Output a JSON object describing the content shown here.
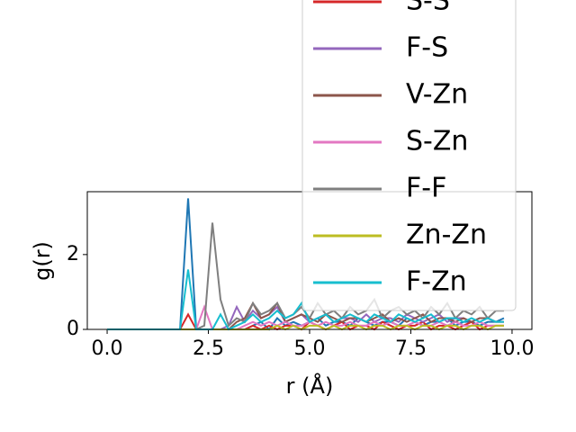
{
  "chart_data": {
    "type": "line",
    "xlabel": "r (Å)",
    "ylabel": "g(r)",
    "x": [
      0,
      0.2,
      0.4,
      0.6,
      0.8,
      1.0,
      1.2,
      1.4,
      1.6,
      1.8,
      2.0,
      2.2,
      2.4,
      2.6,
      2.8,
      3.0,
      3.2,
      3.4,
      3.6,
      3.8,
      4.0,
      4.2,
      4.4,
      4.6,
      4.8,
      5.0,
      5.2,
      5.4,
      5.6,
      5.8,
      6.0,
      6.2,
      6.4,
      6.6,
      6.8,
      7.0,
      7.2,
      7.4,
      7.6,
      7.8,
      8.0,
      8.2,
      8.4,
      8.6,
      8.8,
      9.0,
      9.2,
      9.4,
      9.6,
      9.8
    ],
    "series": [
      {
        "color": "#1f77b4",
        "values": [
          0,
          0,
          0,
          0,
          0,
          0,
          0,
          0,
          0,
          0,
          3.5,
          0,
          0,
          0,
          0,
          0,
          0,
          0,
          0.1,
          0.2,
          0,
          0.3,
          0.1,
          0.2,
          0.1,
          0.2,
          0.3,
          0.1,
          0.2,
          0.2,
          0.1,
          0.3,
          0.2,
          0.1,
          0.2,
          0.2,
          0.1,
          0.3,
          0.2,
          0.1,
          0.2,
          0.2,
          0.3,
          0.1,
          0.2,
          0.2,
          0.1,
          0.2,
          0.2,
          0.3
        ]
      },
      {
        "name": "S-S",
        "color": "#d62728",
        "values": [
          0,
          0,
          0,
          0,
          0,
          0,
          0,
          0,
          0,
          0,
          0.4,
          0,
          0,
          0,
          0,
          0,
          0,
          0,
          0.1,
          0,
          0.1,
          0,
          0.1,
          0.1,
          0,
          0.2,
          0.1,
          0,
          0.1,
          0.2,
          0,
          0.1,
          0.1,
          0,
          0.2,
          0.1,
          0,
          0.1,
          0.1,
          0.2,
          0,
          0.1,
          0.1,
          0,
          0.1,
          0.2,
          0,
          0.1,
          0.1,
          0.1
        ]
      },
      {
        "name": "F-S",
        "color": "#9467bd",
        "values": [
          0,
          0,
          0,
          0,
          0,
          0,
          0,
          0,
          0,
          0,
          0,
          0,
          0,
          0,
          0,
          0.1,
          0.6,
          0.2,
          0.5,
          0.3,
          0.4,
          0.6,
          0.2,
          0.3,
          0.4,
          0.2,
          0.3,
          0.4,
          0.2,
          0.3,
          0.3,
          0.2,
          0.4,
          0.2,
          0.3,
          0.3,
          0.2,
          0.4,
          0.3,
          0.2,
          0.3,
          0.4,
          0.2,
          0.3,
          0.3,
          0.2,
          0.3,
          0.3,
          0.2,
          0.2
        ]
      },
      {
        "name": "V-Zn",
        "color": "#8c564b",
        "values": [
          0,
          0,
          0,
          0,
          0,
          0,
          0,
          0,
          0,
          0,
          0,
          0,
          0,
          0,
          0,
          0,
          0.2,
          0.3,
          0.7,
          0.3,
          0.4,
          0.7,
          0.2,
          0.3,
          0.4,
          0.3,
          0.2,
          0.4,
          0.3,
          0.2,
          0.3,
          0.3,
          0.2,
          0.3,
          0.4,
          0.2,
          0.3,
          0.2,
          0.3,
          0.4,
          0.2,
          0.3,
          0.3,
          0.2,
          0.3,
          0.2,
          0.3,
          0.3,
          0.2,
          0.2
        ]
      },
      {
        "name": "S-Zn",
        "color": "#e377c2",
        "values": [
          0,
          0,
          0,
          0,
          0,
          0,
          0,
          0,
          0,
          0,
          0,
          0,
          0.6,
          0,
          0,
          0,
          0,
          0.1,
          0.2,
          0.1,
          0.2,
          0.1,
          0.2,
          0.1,
          0.1,
          0.2,
          0.1,
          0.2,
          0.1,
          0.1,
          0.2,
          0.1,
          0.1,
          0.2,
          0.1,
          0.2,
          0.1,
          0.1,
          0.2,
          0.1,
          0.1,
          0.2,
          0.1,
          0.2,
          0.1,
          0.1,
          0.2,
          0.1,
          0.1,
          0.1
        ]
      },
      {
        "name": "F-F",
        "color": "#7f7f7f",
        "values": [
          0,
          0,
          0,
          0,
          0,
          0,
          0,
          0,
          0,
          0,
          0,
          0,
          0.1,
          2.85,
          0.8,
          0.1,
          0.3,
          0.2,
          0.7,
          0.4,
          0.5,
          0.7,
          0.3,
          0.4,
          0.6,
          0.3,
          0.7,
          0.4,
          0.5,
          0.3,
          0.6,
          0.4,
          0.5,
          0.8,
          0.3,
          0.5,
          0.6,
          0.4,
          0.5,
          0.3,
          0.6,
          0.4,
          0.7,
          0.3,
          0.5,
          0.4,
          0.6,
          0.3,
          0.5,
          0.5
        ]
      },
      {
        "name": "Zn-Zn",
        "color": "#bcbd22",
        "values": [
          0,
          0,
          0,
          0,
          0,
          0,
          0,
          0,
          0,
          0,
          0,
          0,
          0,
          0,
          0,
          0,
          0,
          0,
          0,
          0,
          0,
          0.1,
          0,
          0.1,
          0,
          0.1,
          0.1,
          0,
          0.1,
          0,
          0.1,
          0.1,
          0,
          0.1,
          0.1,
          0,
          0.1,
          0.1,
          0,
          0.1,
          0.1,
          0,
          0.1,
          0.1,
          0,
          0.1,
          0.1,
          0,
          0.1,
          0.1
        ]
      },
      {
        "name": "F-Zn",
        "color": "#17becf",
        "values": [
          0,
          0,
          0,
          0,
          0,
          0,
          0,
          0,
          0,
          0,
          1.6,
          0,
          0,
          0,
          0.4,
          0,
          0.1,
          0.2,
          0.4,
          0.2,
          0.3,
          0.5,
          0.3,
          0.4,
          0.7,
          0.2,
          0.3,
          0.4,
          0.2,
          0.3,
          0.4,
          0.3,
          0.2,
          0.4,
          0.3,
          0.2,
          0.4,
          0.3,
          0.2,
          0.3,
          0.4,
          0.2,
          0.3,
          0.3,
          0.2,
          0.3,
          0.2,
          0.3,
          0.2,
          0.2
        ]
      }
    ],
    "xlim": [
      -0.49,
      10.49
    ],
    "ylim": [
      0,
      3.68
    ],
    "xticks": [
      {
        "value": 0,
        "label": "0.0"
      },
      2.5,
      {
        "value": 5,
        "label": "5.0"
      },
      7.5,
      {
        "value": 10,
        "label": "10.0"
      }
    ],
    "yticks": [
      0,
      2
    ],
    "legend": "upper right"
  }
}
